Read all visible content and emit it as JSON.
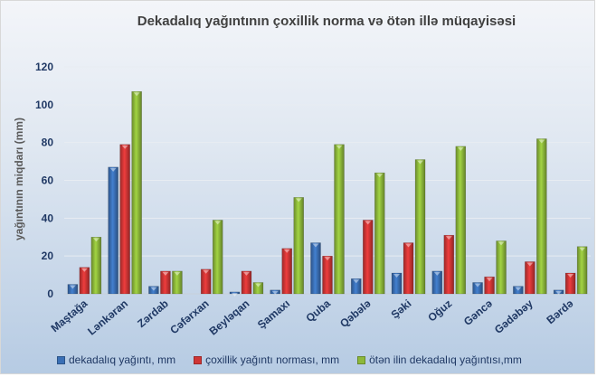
{
  "chart_data": {
    "type": "bar",
    "title": "Dekadalıq yağıntının çoxillik norma  və ötən illə müqayisəsi",
    "xlabel": "",
    "ylabel": "yağıntının miqdarı (mm)",
    "ylim": [
      0,
      120
    ],
    "yticks": [
      0,
      20,
      40,
      60,
      80,
      100,
      120
    ],
    "grid": true,
    "legend_position": "bottom",
    "categories": [
      "Maştağa",
      "Lənkəran",
      "Zərdab",
      "Cəfərxan",
      "Beyləqan",
      "Şamaxı",
      "Quba",
      "Qəbələ",
      "Şəki",
      "Oğuz",
      "Gəncə",
      "Gədəbəy",
      "Bərdə"
    ],
    "series": [
      {
        "name": "dekadalıq yağıntı, mm",
        "color": "#3a6fb5",
        "values": [
          5,
          67,
          4,
          0,
          1,
          2,
          27,
          8,
          11,
          12,
          6,
          4,
          2
        ]
      },
      {
        "name": "çoxillik yağıntı norması, mm",
        "color": "#cf3535",
        "values": [
          14,
          79,
          12,
          13,
          12,
          24,
          20,
          39,
          27,
          31,
          9,
          17,
          11
        ]
      },
      {
        "name": "ötən ilin dekadalıq yağıntısı,mm",
        "color": "#8db83a",
        "values": [
          30,
          107,
          12,
          39,
          6,
          51,
          79,
          64,
          71,
          78,
          28,
          82,
          25
        ]
      }
    ]
  }
}
